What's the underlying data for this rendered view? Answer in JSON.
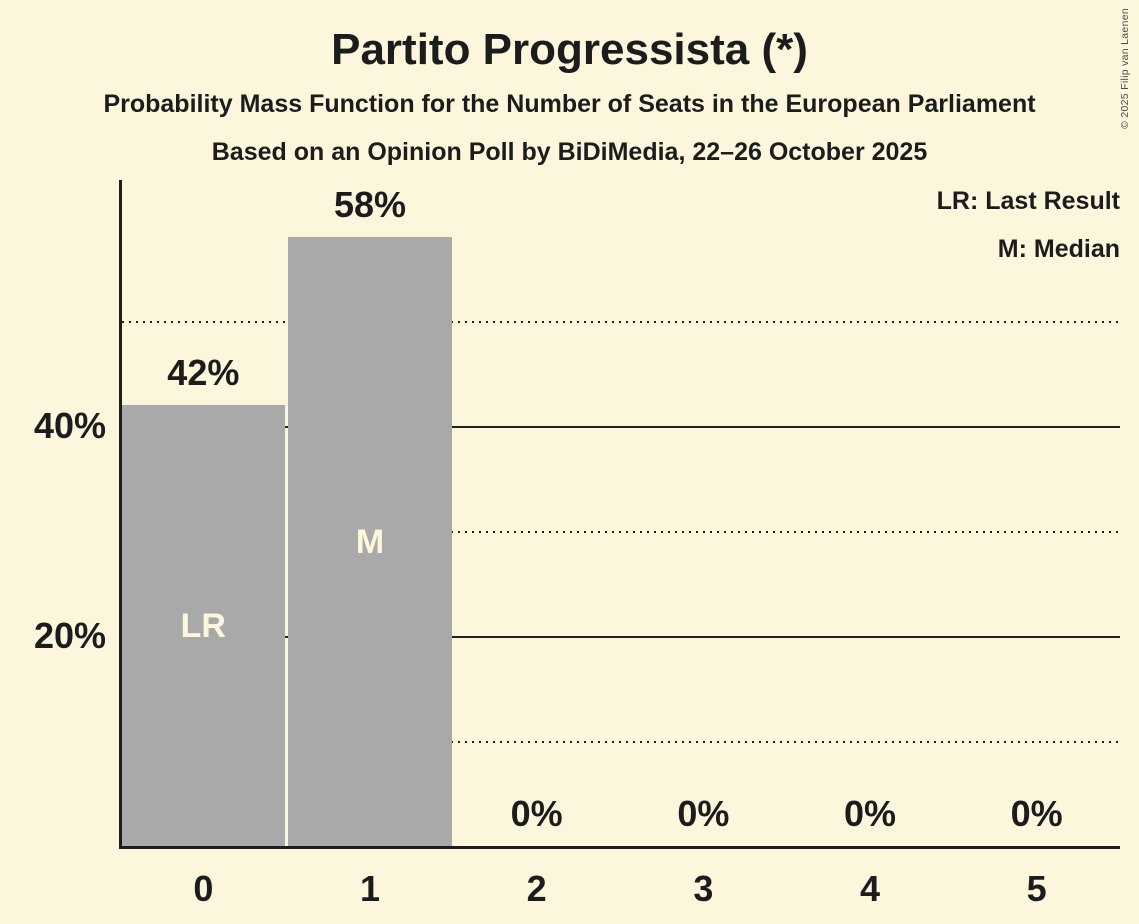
{
  "title": "Partito Progressista (*)",
  "subtitle1": "Probability Mass Function for the Number of Seats in the European Parliament",
  "subtitle2": "Based on an Opinion Poll by BiDiMedia, 22–26 October 2025",
  "legend": {
    "lr": "LR: Last Result",
    "m": "M: Median"
  },
  "copyright": "© 2025 Filip van Laenen",
  "colors": {
    "background": "#FCF7DC",
    "bar": "#A9A9A9",
    "text": "#1C1C1C",
    "bar_label": "#FCF7DC",
    "gridline": "#20201C",
    "copyright_text": "#4A4A4A"
  },
  "chart_data": {
    "type": "bar",
    "title": "Partito Progressista (*)",
    "categories": [
      "0",
      "1",
      "2",
      "3",
      "4",
      "5"
    ],
    "values": [
      42,
      58,
      0,
      0,
      0,
      0
    ],
    "value_labels": [
      "42%",
      "58%",
      "0%",
      "0%",
      "0%",
      "0%"
    ],
    "bar_annotations": [
      "LR",
      "M",
      "",
      "",
      "",
      ""
    ],
    "y_ticks": [
      {
        "pct": 20,
        "label": "20%"
      },
      {
        "pct": 40,
        "label": "40%"
      }
    ],
    "gridlines": {
      "solid": [
        20,
        40
      ],
      "dotted": [
        10,
        30,
        50
      ]
    },
    "ylim": [
      0,
      63
    ],
    "legend_entries": [
      "LR: Last Result",
      "M: Median"
    ],
    "grid": "horizontal-only",
    "legend_position": "top-right"
  }
}
